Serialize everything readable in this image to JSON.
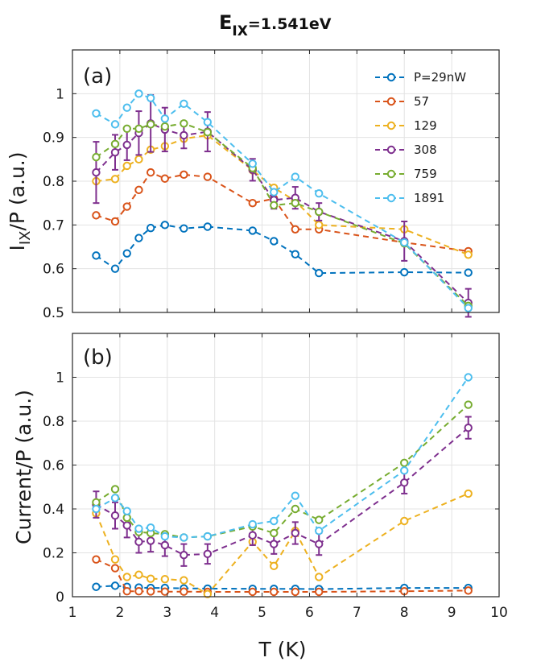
{
  "title": {
    "main": "E",
    "sub": "IX",
    "value": "=1.541eV"
  },
  "colors": {
    "s29": "#0072BD",
    "s57": "#D95319",
    "s129": "#EDB120",
    "s308": "#7E2F8E",
    "s759": "#77AC30",
    "s1891": "#4DBEEE"
  },
  "chart_data": [
    {
      "type": "line",
      "panel_label": "(a)",
      "xlabel": "T (K)",
      "ylabel": {
        "main": "I",
        "sub": "IX",
        "rest": "/P (a.u.)"
      },
      "xlim": [
        1,
        10
      ],
      "ylim": [
        0.5,
        1.1
      ],
      "xticks": [
        1,
        2,
        3,
        4,
        5,
        6,
        7,
        8,
        9,
        10
      ],
      "yticks": [
        0.5,
        0.6,
        0.7,
        0.8,
        0.9,
        1.0
      ],
      "ytick_labels": [
        "0.5",
        "0.6",
        "0.7",
        "0.8",
        "0.9",
        "1"
      ],
      "grid": true,
      "legend_position": "top-right",
      "series": [
        {
          "name": "P=29nW",
          "color_key": "s29",
          "x": [
            1.5,
            1.9,
            2.15,
            2.4,
            2.65,
            2.95,
            3.35,
            3.85,
            4.8,
            5.25,
            5.7,
            6.2,
            8.0,
            9.35
          ],
          "y": [
            0.63,
            0.6,
            0.635,
            0.67,
            0.693,
            0.7,
            0.692,
            0.696,
            0.687,
            0.663,
            0.633,
            0.59,
            0.592,
            0.591
          ]
        },
        {
          "name": "57",
          "color_key": "s57",
          "x": [
            1.5,
            1.9,
            2.15,
            2.4,
            2.65,
            2.95,
            3.35,
            3.85,
            4.8,
            5.25,
            5.7,
            6.2,
            8.0,
            9.35
          ],
          "y": [
            0.722,
            0.708,
            0.742,
            0.78,
            0.82,
            0.806,
            0.815,
            0.81,
            0.75,
            0.76,
            0.69,
            0.69,
            0.66,
            0.64
          ]
        },
        {
          "name": "129",
          "color_key": "s129",
          "x": [
            1.5,
            1.9,
            2.15,
            2.4,
            2.65,
            2.95,
            3.35,
            3.85,
            4.8,
            5.25,
            5.7,
            6.2,
            8.0,
            9.35
          ],
          "y": [
            0.8,
            0.805,
            0.835,
            0.85,
            0.872,
            0.88,
            0.897,
            0.905,
            0.825,
            0.785,
            0.755,
            0.7,
            0.69,
            0.632
          ]
        },
        {
          "name": "308",
          "color_key": "s308",
          "error_bars": true,
          "x": [
            1.5,
            1.9,
            2.15,
            2.4,
            2.65,
            2.95,
            3.35,
            3.85,
            4.8,
            5.25,
            5.7,
            6.2,
            8.0,
            9.35
          ],
          "y": [
            0.82,
            0.866,
            0.883,
            0.91,
            0.932,
            0.918,
            0.905,
            0.913,
            0.826,
            0.757,
            0.762,
            0.73,
            0.663,
            0.522
          ],
          "err": [
            0.07,
            0.04,
            0.035,
            0.05,
            0.065,
            0.05,
            0.03,
            0.045,
            0.025,
            0.02,
            0.025,
            0.02,
            0.045,
            0.032
          ]
        },
        {
          "name": "759",
          "color_key": "s759",
          "x": [
            1.5,
            1.9,
            2.15,
            2.4,
            2.65,
            2.95,
            3.35,
            3.85,
            4.8,
            5.25,
            5.7,
            6.2,
            8.0,
            9.35
          ],
          "y": [
            0.855,
            0.885,
            0.92,
            0.92,
            0.93,
            0.925,
            0.932,
            0.912,
            0.83,
            0.745,
            0.75,
            0.73,
            0.658,
            0.515
          ]
        },
        {
          "name": "1891",
          "color_key": "s1891",
          "x": [
            1.5,
            1.9,
            2.15,
            2.4,
            2.65,
            2.95,
            3.35,
            3.85,
            4.8,
            5.25,
            5.7,
            6.2,
            8.0,
            9.35
          ],
          "y": [
            0.955,
            0.93,
            0.968,
            1.0,
            0.99,
            0.943,
            0.977,
            0.935,
            0.84,
            0.775,
            0.81,
            0.772,
            0.66,
            0.51
          ]
        }
      ]
    },
    {
      "type": "line",
      "panel_label": "(b)",
      "xlabel": "T (K)",
      "ylabel": {
        "main": "Current/P (a.u.)"
      },
      "xlim": [
        1,
        10
      ],
      "ylim": [
        0,
        1.2
      ],
      "xticks": [
        1,
        2,
        3,
        4,
        5,
        6,
        7,
        8,
        9,
        10
      ],
      "yticks": [
        0,
        0.2,
        0.4,
        0.6,
        0.8,
        1.0
      ],
      "ytick_labels": [
        "0",
        "0.2",
        "0.4",
        "0.6",
        "0.8",
        "1"
      ],
      "grid": true,
      "series": [
        {
          "name": "P=29nW",
          "color_key": "s29",
          "x": [
            1.5,
            1.9,
            2.15,
            2.4,
            2.65,
            2.95,
            3.35,
            3.85,
            4.8,
            5.25,
            5.7,
            6.2,
            8.0,
            9.35
          ],
          "y": [
            0.045,
            0.05,
            0.045,
            0.042,
            0.04,
            0.04,
            0.038,
            0.037,
            0.036,
            0.036,
            0.036,
            0.035,
            0.04,
            0.04
          ]
        },
        {
          "name": "57",
          "color_key": "s57",
          "x": [
            1.5,
            1.9,
            2.15,
            2.4,
            2.65,
            2.95,
            3.35,
            3.85,
            4.8,
            5.25,
            5.7,
            6.2,
            8.0,
            9.35
          ],
          "y": [
            0.17,
            0.13,
            0.025,
            0.025,
            0.024,
            0.023,
            0.023,
            0.022,
            0.022,
            0.022,
            0.022,
            0.022,
            0.025,
            0.028
          ]
        },
        {
          "name": "129",
          "color_key": "s129",
          "x": [
            1.5,
            1.9,
            2.15,
            2.4,
            2.65,
            2.95,
            3.35,
            3.85,
            4.8,
            5.25,
            5.7,
            6.2,
            8.0,
            9.35
          ],
          "y": [
            0.38,
            0.17,
            0.09,
            0.1,
            0.082,
            0.08,
            0.075,
            0.012,
            0.25,
            0.14,
            0.3,
            0.09,
            0.345,
            0.47
          ]
        },
        {
          "name": "308",
          "color_key": "s308",
          "error_bars": true,
          "x": [
            1.5,
            1.9,
            2.15,
            2.4,
            2.65,
            2.95,
            3.35,
            3.85,
            4.8,
            5.25,
            5.7,
            6.2,
            8.0,
            9.35
          ],
          "y": [
            0.42,
            0.37,
            0.325,
            0.25,
            0.255,
            0.235,
            0.19,
            0.195,
            0.28,
            0.24,
            0.29,
            0.24,
            0.52,
            0.77
          ],
          "err": [
            0.06,
            0.06,
            0.055,
            0.05,
            0.05,
            0.05,
            0.05,
            0.045,
            0.045,
            0.045,
            0.05,
            0.05,
            0.05,
            0.05
          ]
        },
        {
          "name": "759",
          "color_key": "s759",
          "x": [
            1.5,
            1.9,
            2.15,
            2.4,
            2.65,
            2.95,
            3.35,
            3.85,
            4.8,
            5.25,
            5.7,
            6.2,
            8.0,
            9.35
          ],
          "y": [
            0.43,
            0.49,
            0.36,
            0.295,
            0.29,
            0.285,
            0.27,
            0.275,
            0.32,
            0.29,
            0.4,
            0.35,
            0.61,
            0.875
          ]
        },
        {
          "name": "1891",
          "color_key": "s1891",
          "x": [
            1.5,
            1.9,
            2.15,
            2.4,
            2.65,
            2.95,
            3.35,
            3.85,
            4.8,
            5.25,
            5.7,
            6.2,
            8.0,
            9.35
          ],
          "y": [
            0.4,
            0.45,
            0.39,
            0.31,
            0.315,
            0.275,
            0.27,
            0.275,
            0.33,
            0.345,
            0.46,
            0.3,
            0.575,
            1.0
          ]
        }
      ]
    }
  ]
}
